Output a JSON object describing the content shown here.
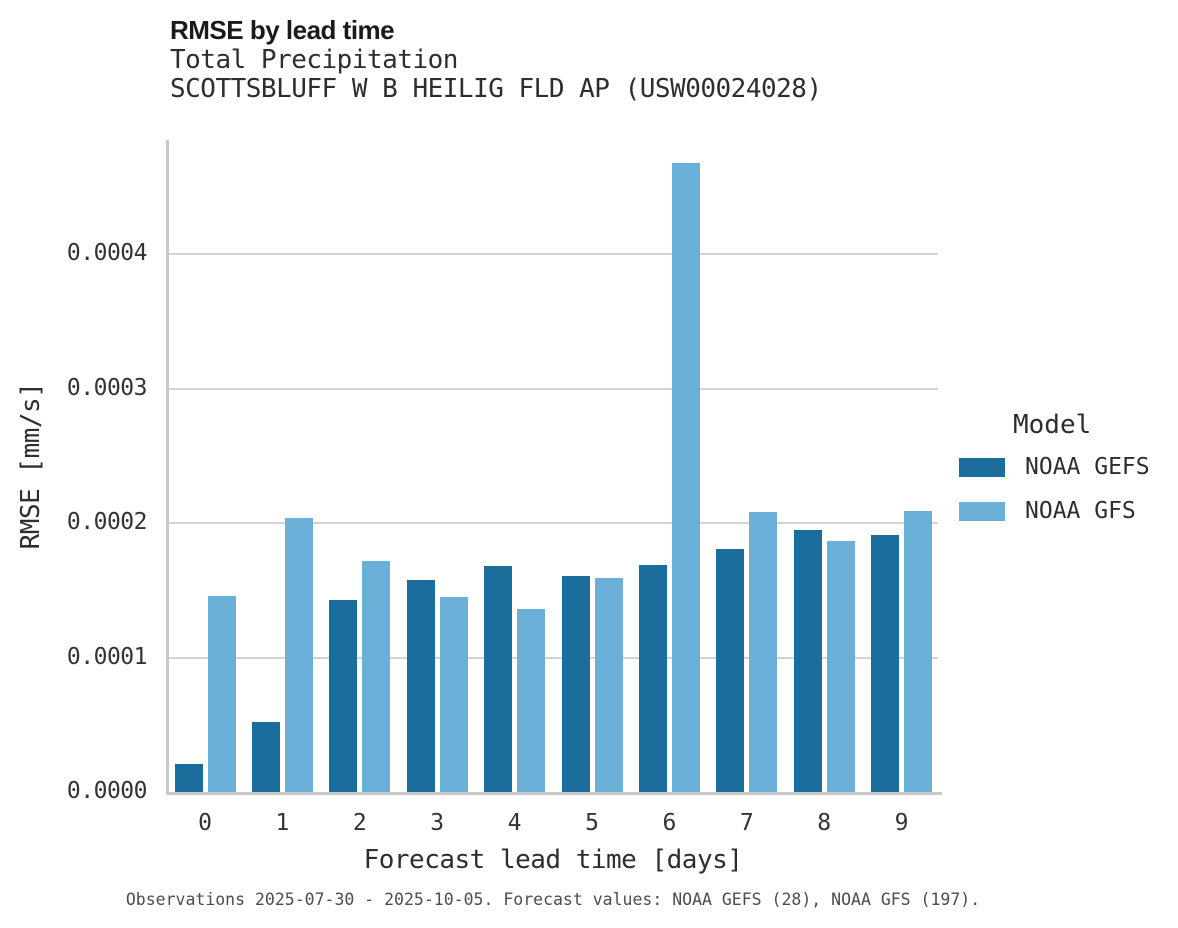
{
  "header": {
    "title": "RMSE by lead time",
    "subtitle1": "Total Precipitation",
    "subtitle2": "SCOTTSBLUFF W B HEILIG FLD AP (USW00024028)"
  },
  "footer": {
    "text": "Observations 2025-07-30 - 2025-10-05. Forecast values: NOAA GEFS (28), NOAA GFS (197)."
  },
  "legend": {
    "title": "Model",
    "items": [
      {
        "label": "NOAA GEFS",
        "color": "#1B6D9C"
      },
      {
        "label": "NOAA GFS",
        "color": "#6BB0D8"
      }
    ]
  },
  "colors": {
    "dark_blue": "#1B6D9C",
    "light_blue": "#6BB0D8",
    "gridline": "#D3D3D3",
    "spine": "#C9C9C9",
    "title_text": "#1A1A1A",
    "axis_text": "#333333",
    "footer_text": "#4D4D4D"
  },
  "chart_data": {
    "type": "bar",
    "title": "RMSE by lead time",
    "subtitle": "Total Precipitation — SCOTTSBLUFF W B HEILIG FLD AP (USW00024028)",
    "xlabel": "Forecast lead time [days]",
    "ylabel": "RMSE [mm/s]",
    "categories": [
      "0",
      "1",
      "2",
      "3",
      "4",
      "5",
      "6",
      "7",
      "8",
      "9"
    ],
    "series": [
      {
        "name": "NOAA GEFS",
        "color": "#1B6D9C",
        "values": [
          2.1e-05,
          5.2e-05,
          0.000143,
          0.000158,
          0.000168,
          0.000161,
          0.000169,
          0.000181,
          0.000195,
          0.000191
        ]
      },
      {
        "name": "NOAA GFS",
        "color": "#6BB0D8",
        "values": [
          0.000146,
          0.000204,
          0.000172,
          0.000145,
          0.000136,
          0.000159,
          0.000468,
          0.000208,
          0.000187,
          0.000209
        ]
      }
    ],
    "ylim": [
      0,
      0.000485
    ],
    "yticks": [
      0.0,
      0.0001,
      0.0002,
      0.0003,
      0.0004
    ],
    "ytick_labels": [
      "0.0000",
      "0.0001",
      "0.0002",
      "0.0003",
      "0.0004"
    ],
    "grid": "horizontal",
    "legend_position": "right",
    "legend_title": "Model"
  }
}
